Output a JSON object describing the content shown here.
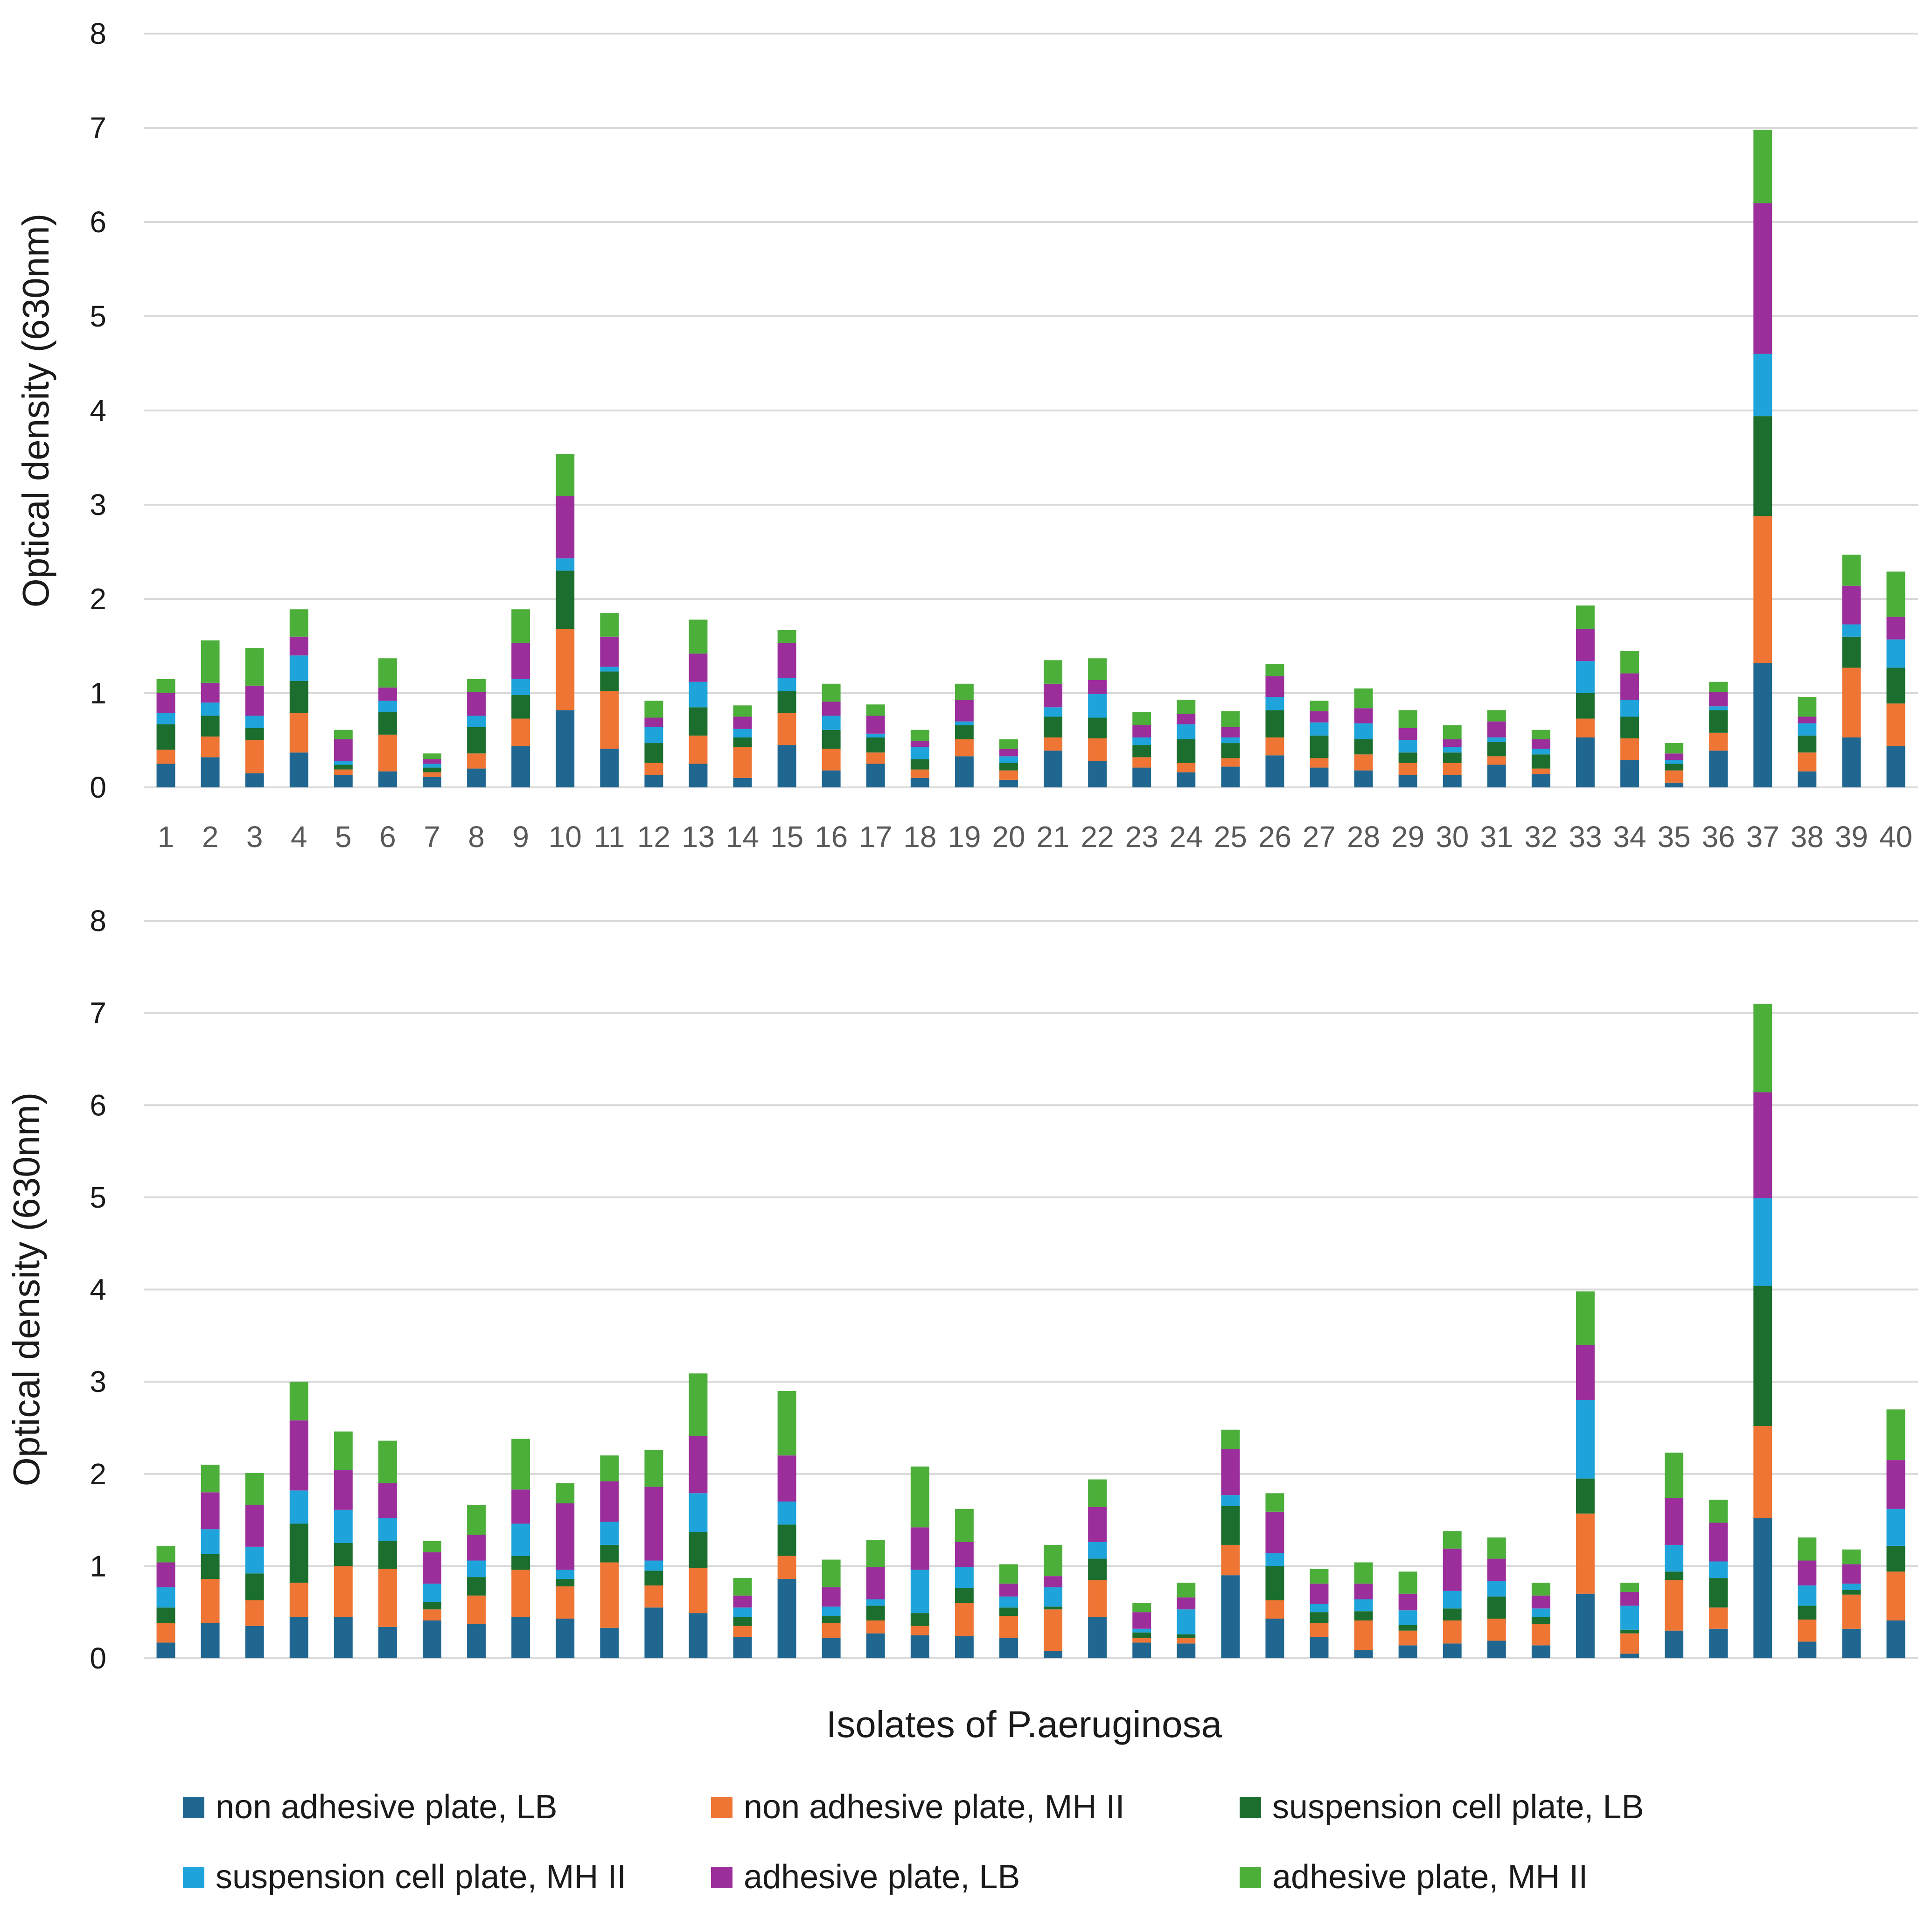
{
  "chart_data": {
    "type": "bar",
    "stacked": true,
    "xlabel": "Isolates of P.aeruginosa",
    "ylabel": "Optical density (630nm)",
    "ylim": [
      0,
      8
    ],
    "yticks": [
      0,
      1,
      2,
      3,
      4,
      5,
      6,
      7,
      8
    ],
    "categories": [
      "1",
      "2",
      "3",
      "4",
      "5",
      "6",
      "7",
      "8",
      "9",
      "10",
      "11",
      "12",
      "13",
      "14",
      "15",
      "16",
      "17",
      "18",
      "19",
      "20",
      "21",
      "22",
      "23",
      "24",
      "25",
      "26",
      "27",
      "28",
      "29",
      "30",
      "31",
      "32",
      "33",
      "34",
      "35",
      "36",
      "37",
      "38",
      "39",
      "40"
    ],
    "legend_position": "bottom",
    "series_meta": [
      {
        "name": "non adhesive plate, LB",
        "color": "#1f6691"
      },
      {
        "name": "non adhesive plate,  MH II",
        "color": "#ee7534"
      },
      {
        "name": "suspension cell plate, LB",
        "color": "#1b6e2e"
      },
      {
        "name": "suspension cell plate, MH II",
        "color": "#1ea3db"
      },
      {
        "name": "adhesive plate, LB",
        "color": "#9b2e9b"
      },
      {
        "name": "adhesive plate, MH II",
        "color": "#4caf3a"
      }
    ],
    "panels": [
      {
        "show_x_ticks": true,
        "series": [
          {
            "name": "non adhesive plate, LB",
            "values": [
              0.25,
              0.32,
              0.15,
              0.37,
              0.13,
              0.17,
              0.11,
              0.2,
              0.44,
              0.82,
              0.41,
              0.13,
              0.25,
              0.1,
              0.45,
              0.18,
              0.25,
              0.1,
              0.33,
              0.08,
              0.39,
              0.28,
              0.21,
              0.16,
              0.22,
              0.34,
              0.21,
              0.18,
              0.13,
              0.13,
              0.24,
              0.14,
              0.53,
              0.29,
              0.05,
              0.39,
              1.32,
              0.17,
              0.53,
              0.44
            ]
          },
          {
            "name": "non adhesive plate,  MH II",
            "values": [
              0.15,
              0.22,
              0.35,
              0.42,
              0.06,
              0.39,
              0.05,
              0.16,
              0.29,
              0.86,
              0.61,
              0.13,
              0.3,
              0.33,
              0.34,
              0.23,
              0.12,
              0.09,
              0.18,
              0.1,
              0.14,
              0.24,
              0.11,
              0.1,
              0.09,
              0.19,
              0.1,
              0.17,
              0.13,
              0.13,
              0.09,
              0.06,
              0.2,
              0.23,
              0.13,
              0.19,
              1.56,
              0.2,
              0.74,
              0.45
            ]
          },
          {
            "name": "suspension cell plate, LB",
            "values": [
              0.27,
              0.22,
              0.13,
              0.34,
              0.05,
              0.24,
              0.05,
              0.28,
              0.25,
              0.62,
              0.21,
              0.21,
              0.3,
              0.1,
              0.23,
              0.2,
              0.16,
              0.11,
              0.15,
              0.08,
              0.22,
              0.22,
              0.13,
              0.25,
              0.16,
              0.29,
              0.24,
              0.16,
              0.11,
              0.11,
              0.15,
              0.15,
              0.27,
              0.23,
              0.07,
              0.24,
              1.06,
              0.18,
              0.33,
              0.38
            ]
          },
          {
            "name": "suspension cell plate, MH II",
            "values": [
              0.12,
              0.14,
              0.13,
              0.27,
              0.04,
              0.12,
              0.04,
              0.12,
              0.17,
              0.13,
              0.05,
              0.17,
              0.27,
              0.09,
              0.14,
              0.15,
              0.04,
              0.13,
              0.04,
              0.07,
              0.1,
              0.25,
              0.08,
              0.16,
              0.06,
              0.14,
              0.14,
              0.17,
              0.13,
              0.06,
              0.05,
              0.06,
              0.34,
              0.18,
              0.04,
              0.04,
              0.66,
              0.13,
              0.13,
              0.3
            ]
          },
          {
            "name": "adhesive plate, LB",
            "values": [
              0.21,
              0.21,
              0.32,
              0.2,
              0.23,
              0.14,
              0.05,
              0.25,
              0.38,
              0.66,
              0.32,
              0.1,
              0.3,
              0.13,
              0.37,
              0.15,
              0.19,
              0.06,
              0.23,
              0.08,
              0.25,
              0.15,
              0.13,
              0.11,
              0.11,
              0.22,
              0.12,
              0.16,
              0.13,
              0.08,
              0.17,
              0.1,
              0.34,
              0.28,
              0.07,
              0.15,
              1.6,
              0.07,
              0.41,
              0.24
            ]
          },
          {
            "name": "adhesive plate, MH II",
            "values": [
              0.15,
              0.45,
              0.4,
              0.29,
              0.1,
              0.31,
              0.06,
              0.14,
              0.36,
              0.45,
              0.25,
              0.18,
              0.36,
              0.12,
              0.14,
              0.19,
              0.12,
              0.12,
              0.17,
              0.1,
              0.25,
              0.23,
              0.14,
              0.15,
              0.17,
              0.13,
              0.11,
              0.21,
              0.19,
              0.15,
              0.12,
              0.1,
              0.25,
              0.24,
              0.11,
              0.11,
              0.78,
              0.21,
              0.33,
              0.48
            ]
          }
        ]
      },
      {
        "show_x_ticks": false,
        "series": [
          {
            "name": "non adhesive plate, LB",
            "values": [
              0.17,
              0.38,
              0.35,
              0.45,
              0.45,
              0.34,
              0.41,
              0.37,
              0.45,
              0.43,
              0.33,
              0.55,
              0.49,
              0.23,
              0.86,
              0.22,
              0.27,
              0.25,
              0.24,
              0.22,
              0.08,
              0.45,
              0.17,
              0.16,
              0.9,
              0.43,
              0.23,
              0.09,
              0.14,
              0.16,
              0.19,
              0.14,
              0.7,
              0.05,
              0.3,
              0.32,
              1.52,
              0.18,
              0.32,
              0.41
            ]
          },
          {
            "name": "non adhesive plate,  MH II",
            "values": [
              0.21,
              0.48,
              0.28,
              0.37,
              0.55,
              0.63,
              0.12,
              0.31,
              0.51,
              0.35,
              0.71,
              0.24,
              0.49,
              0.12,
              0.25,
              0.16,
              0.14,
              0.1,
              0.36,
              0.24,
              0.45,
              0.4,
              0.05,
              0.06,
              0.33,
              0.2,
              0.15,
              0.32,
              0.16,
              0.25,
              0.24,
              0.23,
              0.87,
              0.22,
              0.55,
              0.23,
              1.0,
              0.24,
              0.37,
              0.53
            ]
          },
          {
            "name": "suspension cell plate, LB",
            "values": [
              0.17,
              0.27,
              0.29,
              0.64,
              0.25,
              0.3,
              0.08,
              0.2,
              0.15,
              0.08,
              0.19,
              0.16,
              0.39,
              0.1,
              0.34,
              0.08,
              0.16,
              0.14,
              0.16,
              0.09,
              0.03,
              0.23,
              0.06,
              0.04,
              0.42,
              0.37,
              0.12,
              0.1,
              0.06,
              0.13,
              0.24,
              0.08,
              0.38,
              0.04,
              0.09,
              0.32,
              1.52,
              0.15,
              0.05,
              0.28
            ]
          },
          {
            "name": "suspension cell plate, MH II",
            "values": [
              0.22,
              0.27,
              0.29,
              0.36,
              0.36,
              0.25,
              0.2,
              0.18,
              0.35,
              0.1,
              0.25,
              0.11,
              0.42,
              0.1,
              0.25,
              0.1,
              0.07,
              0.47,
              0.23,
              0.12,
              0.21,
              0.18,
              0.04,
              0.27,
              0.12,
              0.14,
              0.09,
              0.13,
              0.16,
              0.19,
              0.17,
              0.09,
              0.85,
              0.26,
              0.29,
              0.18,
              0.95,
              0.22,
              0.07,
              0.4
            ]
          },
          {
            "name": "adhesive plate, LB",
            "values": [
              0.27,
              0.4,
              0.45,
              0.76,
              0.43,
              0.38,
              0.34,
              0.28,
              0.37,
              0.72,
              0.44,
              0.8,
              0.62,
              0.13,
              0.5,
              0.21,
              0.35,
              0.46,
              0.27,
              0.14,
              0.12,
              0.38,
              0.18,
              0.13,
              0.5,
              0.45,
              0.22,
              0.17,
              0.18,
              0.46,
              0.24,
              0.14,
              0.6,
              0.15,
              0.51,
              0.42,
              1.15,
              0.27,
              0.21,
              0.53
            ]
          },
          {
            "name": "adhesive plate, MH II",
            "values": [
              0.18,
              0.3,
              0.35,
              0.42,
              0.42,
              0.46,
              0.12,
              0.32,
              0.55,
              0.22,
              0.28,
              0.4,
              0.68,
              0.19,
              0.7,
              0.3,
              0.29,
              0.66,
              0.36,
              0.21,
              0.34,
              0.3,
              0.1,
              0.16,
              0.21,
              0.2,
              0.16,
              0.23,
              0.24,
              0.19,
              0.23,
              0.14,
              0.58,
              0.1,
              0.49,
              0.25,
              0.96,
              0.25,
              0.16,
              0.55
            ]
          }
        ]
      }
    ]
  }
}
